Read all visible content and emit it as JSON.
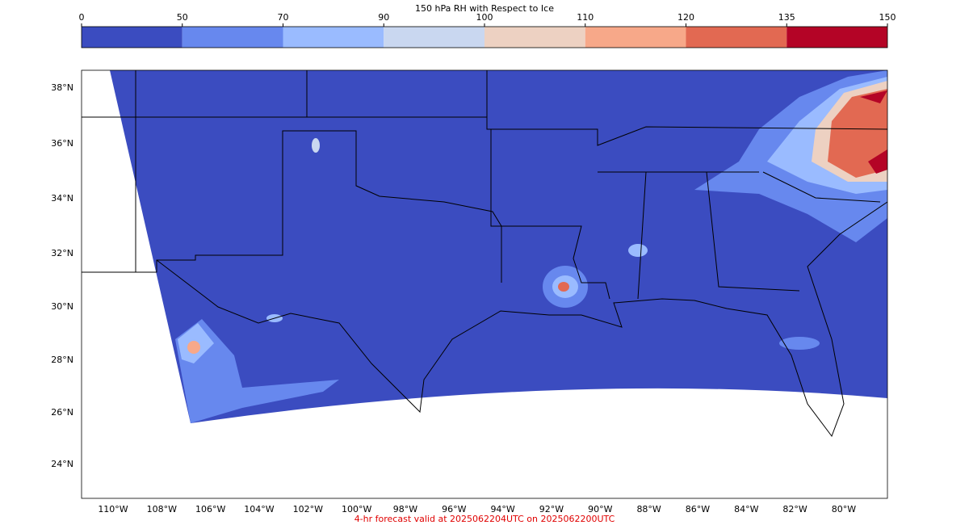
{
  "title": "150 hPa RH with Respect to Ice",
  "colorbar": {
    "ticks": [
      0,
      50,
      70,
      90,
      100,
      110,
      120,
      135,
      150
    ],
    "colors": [
      "#3b4cc0",
      "#6788ee",
      "#9abbff",
      "#c9d7f0",
      "#edd1c2",
      "#f7a889",
      "#e26952",
      "#b40426"
    ]
  },
  "lat_labels": [
    "38°N",
    "36°N",
    "34°N",
    "32°N",
    "30°N",
    "28°N",
    "26°N",
    "24°N"
  ],
  "lon_labels": [
    "110°W",
    "108°W",
    "106°W",
    "104°W",
    "102°W",
    "100°W",
    "98°W",
    "96°W",
    "94°W",
    "92°W",
    "90°W",
    "88°W",
    "86°W",
    "84°W",
    "82°W",
    "80°W"
  ],
  "footer": "4-hr forecast valid at 2025062204UTC on 2025062200UTC"
}
